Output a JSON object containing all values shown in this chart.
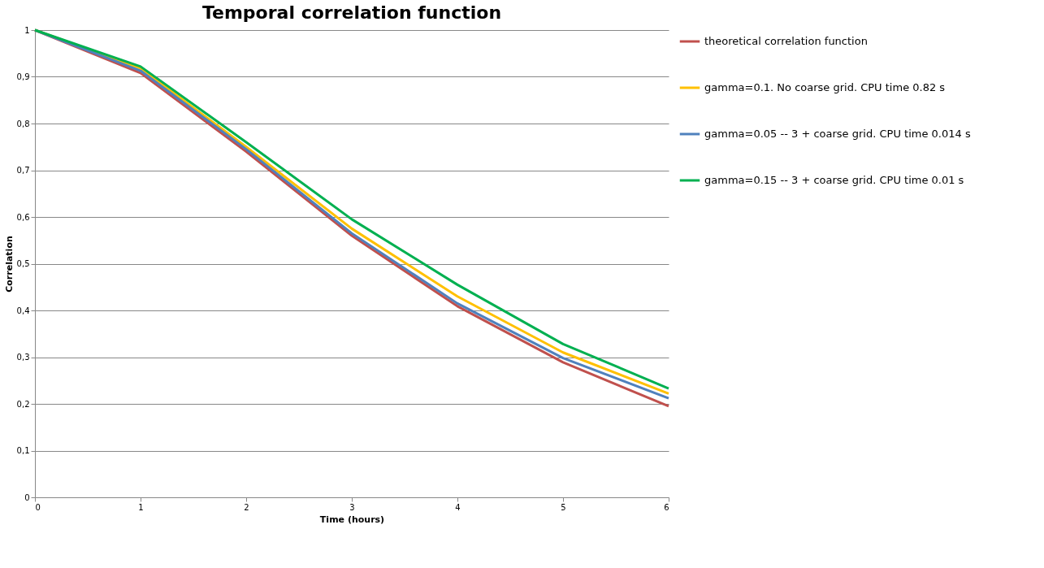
{
  "chart_data": {
    "type": "line",
    "title": "Temporal correlation function",
    "xlabel": "Time (hours)",
    "ylabel": "Correlation",
    "x": [
      0,
      1,
      2,
      3,
      4,
      5,
      6
    ],
    "series": [
      {
        "name": "theoretical correlation function",
        "color": "#c0504d",
        "values": [
          1,
          0.908,
          0.74,
          0.56,
          0.409,
          0.289,
          0.195
        ]
      },
      {
        "name": "gamma=0.1. No coarse grid.      CPU time 0.82 s",
        "color": "#ffc000",
        "values": [
          1,
          0.918,
          0.75,
          0.575,
          0.43,
          0.31,
          0.222
        ]
      },
      {
        "name": "gamma=0.05 -- 3 + coarse grid. CPU time 0.014 s",
        "color": "#4f81bd",
        "values": [
          1,
          0.913,
          0.745,
          0.565,
          0.415,
          0.298,
          0.212
        ]
      },
      {
        "name": "gamma=0.15 -- 3 + coarse grid. CPU time 0.01 s",
        "color": "#00b050",
        "values": [
          1,
          0.922,
          0.76,
          0.595,
          0.455,
          0.328,
          0.233
        ]
      }
    ],
    "xlim": [
      0,
      6
    ],
    "xticks": [
      0,
      1,
      2,
      3,
      4,
      5,
      6
    ],
    "ylim": [
      0,
      1
    ],
    "yticks": [
      0,
      {
        "value": 0.1,
        "label": "0,1"
      },
      {
        "value": 0.2,
        "label": "0,2"
      },
      {
        "value": 0.3,
        "label": "0,3"
      },
      {
        "value": 0.4,
        "label": "0,4"
      },
      {
        "value": 0.5,
        "label": "0,5"
      },
      {
        "value": 0.6,
        "label": "0,6"
      },
      {
        "value": 0.7,
        "label": "0,7"
      },
      {
        "value": 0.8,
        "label": "0,8"
      },
      {
        "value": 0.9,
        "label": "0,9"
      },
      1
    ],
    "grid": "y",
    "legend": "right",
    "marker": "none",
    "line_style": "solid"
  }
}
